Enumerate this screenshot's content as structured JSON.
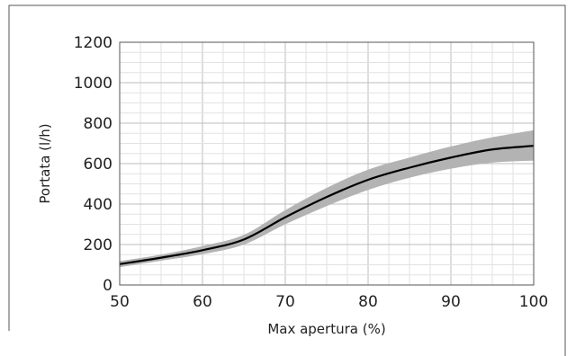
{
  "chart_data": {
    "type": "line",
    "xlabel": "Max apertura (%)",
    "ylabel": "Portata (l/h)",
    "xlim": [
      50,
      100
    ],
    "ylim": [
      0,
      1200
    ],
    "x_ticks": [
      "50",
      "60",
      "70",
      "80",
      "90",
      "100"
    ],
    "y_ticks": [
      "0",
      "200",
      "400",
      "600",
      "800",
      "1000",
      "1200"
    ],
    "grid": true,
    "series": [
      {
        "x": [
          50,
          55,
          60,
          65,
          70,
          75,
          80,
          85,
          90,
          95,
          100
        ],
        "y": [
          103,
          135,
          172,
          225,
          335,
          435,
          520,
          580,
          630,
          670,
          688
        ],
        "band_lower": [
          88,
          120,
          152,
          200,
          300,
          390,
          470,
          530,
          575,
          605,
          615
        ],
        "band_upper": [
          118,
          150,
          192,
          248,
          370,
          480,
          570,
          630,
          685,
          730,
          765
        ]
      }
    ],
    "colors": {
      "line": "#000000",
      "band": "#b3b3b3",
      "grid_major": "#bdbdbd",
      "grid_minor": "#e2e2e2",
      "frame": "#555555"
    }
  }
}
